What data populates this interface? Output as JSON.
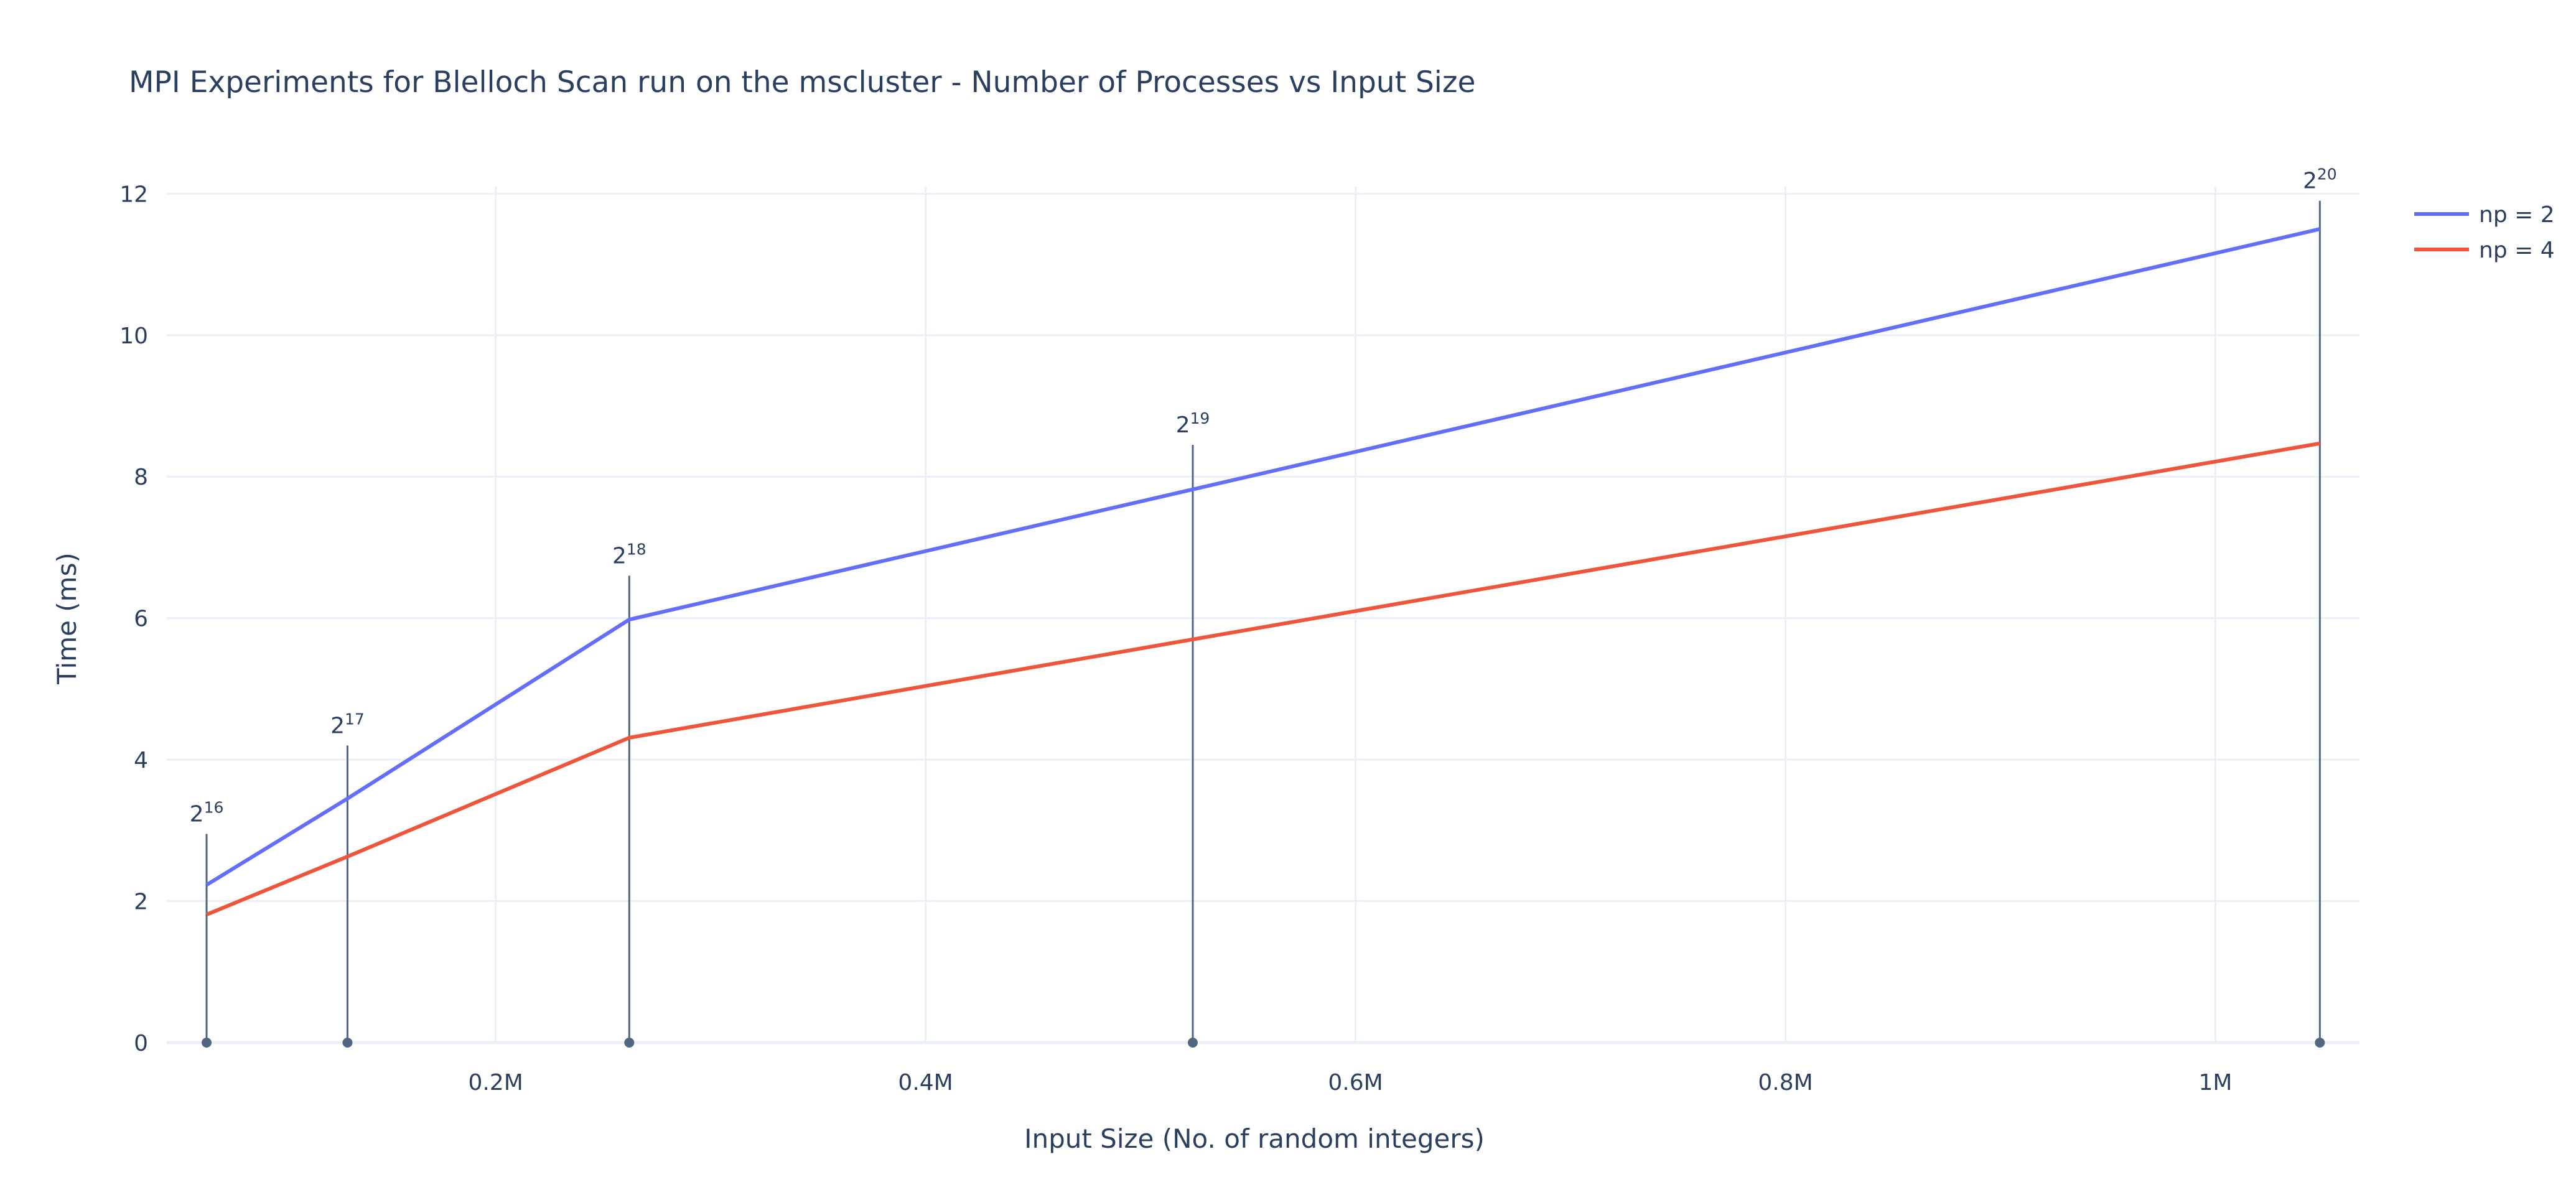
{
  "chart_data": {
    "type": "line",
    "title": "MPI Experiments for Blelloch Scan run on the mscluster - Number of Processes vs Input Size",
    "xlabel": "Input Size (No. of random integers)",
    "ylabel": "Time (ms)",
    "x": [
      65536,
      131072,
      262144,
      524288,
      1048576
    ],
    "xlim": [
      47000,
      1067000
    ],
    "ylim": [
      0,
      12.1
    ],
    "x_ticks": [
      {
        "value": 200000,
        "label": "0.2M"
      },
      {
        "value": 400000,
        "label": "0.4M"
      },
      {
        "value": 600000,
        "label": "0.6M"
      },
      {
        "value": 800000,
        "label": "0.8M"
      },
      {
        "value": 1000000,
        "label": "1M"
      }
    ],
    "y_ticks": [
      {
        "value": 0,
        "label": "0"
      },
      {
        "value": 2,
        "label": "2"
      },
      {
        "value": 4,
        "label": "4"
      },
      {
        "value": 6,
        "label": "6"
      },
      {
        "value": 8,
        "label": "8"
      },
      {
        "value": 10,
        "label": "10"
      },
      {
        "value": 12,
        "label": "12"
      }
    ],
    "series": [
      {
        "name": "np = 2",
        "color": "#636efa",
        "values": [
          2.23,
          3.45,
          5.98,
          7.82,
          11.5
        ]
      },
      {
        "name": "np = 4",
        "color": "#ef553b",
        "values": [
          1.81,
          2.63,
          4.31,
          5.7,
          8.47
        ]
      }
    ],
    "annotations": [
      {
        "x": 65536,
        "y": 2.95,
        "base": "2",
        "exp": "16"
      },
      {
        "x": 131072,
        "y": 4.2,
        "base": "2",
        "exp": "17"
      },
      {
        "x": 262144,
        "y": 6.6,
        "base": "2",
        "exp": "18"
      },
      {
        "x": 524288,
        "y": 8.45,
        "base": "2",
        "exp": "19"
      },
      {
        "x": 1048576,
        "y": 11.9,
        "base": "2",
        "exp": "20"
      }
    ],
    "annotation_color": "#506784",
    "grid": true,
    "legend_position": "top-right"
  }
}
